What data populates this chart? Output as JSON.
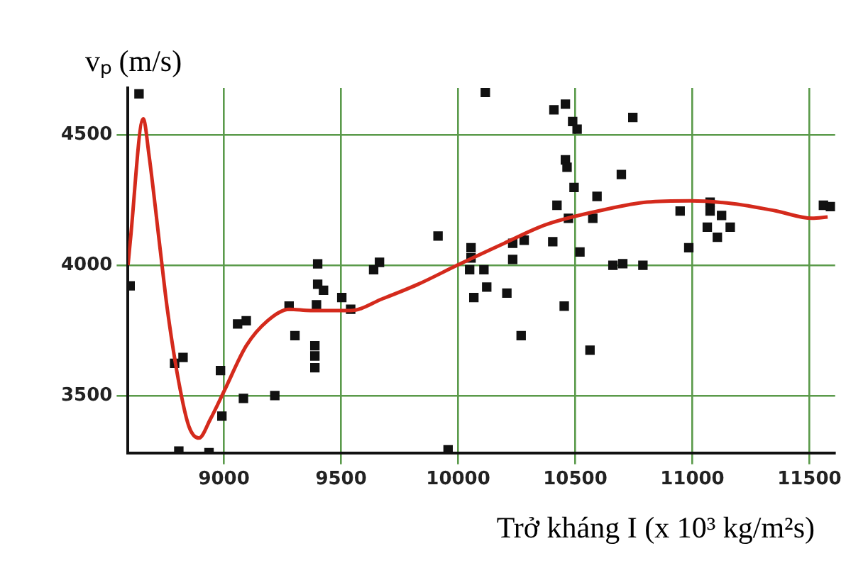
{
  "chart_data": {
    "type": "scatter",
    "xlabel": "Trở kháng I (x 10³ kg/m²s)",
    "ylabel": "vₚ (m/s)",
    "xlim": [
      8590,
      11610
    ],
    "xticks": [
      9000,
      9500,
      10000,
      10500,
      11000,
      11500
    ],
    "ylim": [
      3280,
      4680
    ],
    "yticks": [
      3500,
      4000,
      4500
    ],
    "grid": true,
    "series": [
      {
        "marker": "square",
        "color": "#111111",
        "x": [
          8637,
          8599,
          9400,
          9400,
          9425,
          9503,
          9278,
          9395,
          9541,
          9639,
          9664,
          8789,
          8825,
          8985,
          9058,
          9095,
          9303,
          9388,
          9388,
          9388,
          9083,
          9217,
          8991,
          8807,
          8936,
          10116,
          10409,
          10458,
          10489,
          10508,
          10746,
          10458,
          10465,
          10495,
          10697,
          10593,
          10422,
          10471,
          10575,
          10948,
          11076,
          11076,
          11125,
          11064,
          11162,
          11107,
          10985,
          11560,
          11590,
          9914,
          10055,
          10055,
          10049,
          10110,
          10122,
          10067,
          10208,
          10233,
          10233,
          10282,
          10404,
          10520,
          10661,
          10703,
          10789,
          10453,
          10269,
          10563,
          9957
        ],
        "values": [
          4657,
          3921,
          4005,
          3927,
          3904,
          3876,
          3843,
          3848,
          3831,
          3983,
          4011,
          3624,
          3646,
          3596,
          3775,
          3787,
          3730,
          3691,
          3652,
          3607,
          3489,
          3500,
          3421,
          3287,
          3281,
          4663,
          4596,
          4618,
          4551,
          4522,
          4567,
          4404,
          4376,
          4298,
          4348,
          4264,
          4230,
          4180,
          4180,
          4208,
          4242,
          4208,
          4191,
          4146,
          4146,
          4107,
          4067,
          4230,
          4225,
          4112,
          4067,
          4028,
          3983,
          3983,
          3916,
          3876,
          3893,
          4084,
          4022,
          4096,
          4090,
          4051,
          4000,
          4006,
          4000,
          3843,
          3730,
          3674,
          3292
        ]
      },
      {
        "type": "line",
        "marker": "none",
        "color": "#d42a1c",
        "x": [
          8590,
          8600,
          8655,
          8680,
          8728,
          8758,
          8807,
          8850,
          8893,
          8942,
          9003,
          9095,
          9186,
          9278,
          9370,
          9541,
          9676,
          9829,
          9996,
          10196,
          10379,
          10624,
          10807,
          10991,
          11174,
          11358,
          11511,
          11578
        ],
        "values": [
          4000,
          4095,
          4562,
          4420,
          4056,
          3831,
          3551,
          3382,
          3337,
          3410,
          3522,
          3691,
          3787,
          3831,
          3826,
          3826,
          3871,
          3927,
          4000,
          4084,
          4157,
          4213,
          4242,
          4247,
          4236,
          4208,
          4180,
          4185
        ]
      }
    ]
  }
}
